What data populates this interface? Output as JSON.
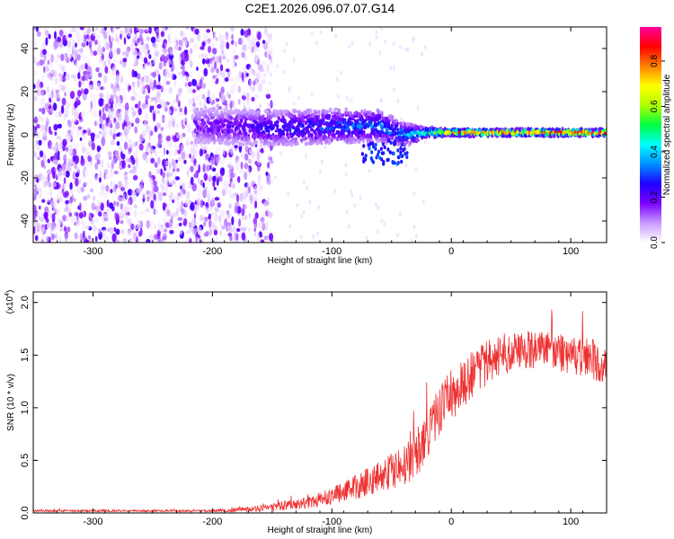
{
  "title": "C2E1.2026.096.07.07.G14",
  "chart_data": [
    {
      "type": "heatmap",
      "name": "spectrogram",
      "xlabel": "Height of straight line (km)",
      "ylabel": "Frequency (Hz)",
      "xlim": [
        -350,
        130
      ],
      "ylim": [
        -50,
        50
      ],
      "xticks": [
        -300,
        -200,
        -100,
        0,
        100
      ],
      "xtick_labels": [
        "-300",
        "-200",
        "-100",
        "0",
        "100"
      ],
      "yticks": [
        -40,
        -20,
        0,
        20,
        40
      ],
      "ytick_labels": [
        "-40",
        "-20",
        "0",
        "20",
        "40"
      ],
      "colorbar": {
        "label": "Normalized spectral amplitude",
        "range": [
          0,
          0.95
        ],
        "ticks": [
          0.0,
          0.2,
          0.4,
          0.6,
          0.8
        ],
        "tick_labels": [
          "0.0",
          "0.2",
          "0.4",
          "0.6",
          "0.8"
        ],
        "colors": [
          "#ffffff",
          "#c89bff",
          "#7a00ff",
          "#2000ff",
          "#0090ff",
          "#00ffff",
          "#00ff40",
          "#b0ff00",
          "#ffff00",
          "#ff8000",
          "#ff0000",
          "#ff00a0"
        ]
      },
      "features": {
        "noise_region_x": [
          -350,
          -170
        ],
        "signal_band": [
          {
            "x": -215,
            "f": 4,
            "width": 10,
            "amp": 0.12
          },
          {
            "x": -150,
            "f": 3,
            "width": 10,
            "amp": 0.2
          },
          {
            "x": -100,
            "f": 4,
            "width": 10,
            "amp": 0.25
          },
          {
            "x": -60,
            "f": 4,
            "width": 9,
            "amp": 0.3
          },
          {
            "x": -40,
            "f": 0,
            "width": 7,
            "amp": 0.3
          },
          {
            "x": -20,
            "f": 1,
            "width": 3,
            "amp": 0.45
          },
          {
            "x": 0,
            "f": 1,
            "width": 2,
            "amp": 0.75
          },
          {
            "x": 60,
            "f": 1,
            "width": 2,
            "amp": 0.8
          },
          {
            "x": 130,
            "f": 1,
            "width": 2,
            "amp": 0.85
          }
        ]
      }
    },
    {
      "type": "line",
      "name": "snr",
      "xlabel": "Height of straight line (km)",
      "ylabel": "SNR (10 * v/v)",
      "multiplier_label": "(x10",
      "multiplier_exp": "4",
      "multiplier_close": ")",
      "xlim": [
        -350,
        130
      ],
      "ylim": [
        0,
        2.1
      ],
      "xticks": [
        -300,
        -200,
        -100,
        0,
        100
      ],
      "xtick_labels": [
        "-300",
        "-200",
        "-100",
        "0",
        "100"
      ],
      "yticks": [
        0.0,
        0.5,
        1.0,
        1.5,
        2.0
      ],
      "ytick_labels": [
        "0.0",
        "0.5",
        "1.0",
        "1.5",
        "2.0"
      ],
      "color": "#ee3030",
      "series": [
        {
          "name": "SNR",
          "envelope_x": [
            -350,
            -200,
            -160,
            -120,
            -100,
            -80,
            -60,
            -40,
            -30,
            -20,
            -10,
            0,
            20,
            40,
            60,
            80,
            100,
            120,
            130
          ],
          "envelope_mean": [
            0.02,
            0.02,
            0.04,
            0.1,
            0.16,
            0.25,
            0.35,
            0.45,
            0.55,
            0.75,
            0.95,
            1.12,
            1.35,
            1.5,
            1.55,
            1.55,
            1.5,
            1.45,
            1.42
          ],
          "envelope_spread": [
            0.01,
            0.01,
            0.03,
            0.06,
            0.08,
            0.12,
            0.15,
            0.2,
            0.22,
            0.25,
            0.25,
            0.25,
            0.22,
            0.2,
            0.18,
            0.18,
            0.18,
            0.2,
            0.2
          ]
        }
      ]
    }
  ]
}
